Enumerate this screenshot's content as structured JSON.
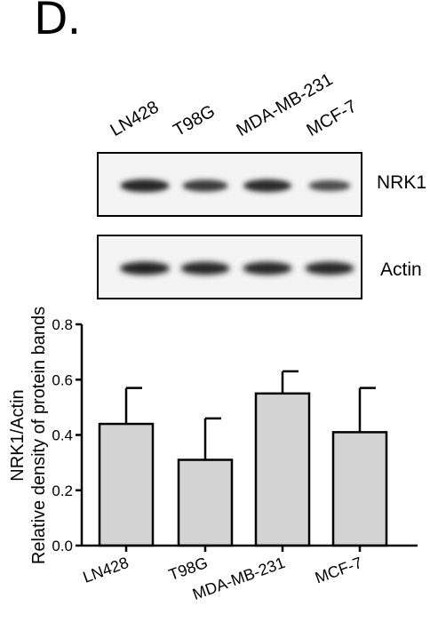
{
  "panel": {
    "letter": "D."
  },
  "blot": {
    "lanes": [
      "LN428",
      "T98G",
      "MDA-MB-231",
      "MCF-7"
    ],
    "rows": [
      {
        "label": "NRK1",
        "band_intensity": [
          0.95,
          0.75,
          0.9,
          0.55
        ]
      },
      {
        "label": "Actin",
        "band_intensity": [
          1.0,
          0.95,
          0.95,
          0.95
        ]
      }
    ]
  },
  "chart_data": {
    "type": "bar",
    "categories": [
      "LN428",
      "T98G",
      "MDA-MB-231",
      "MCF-7"
    ],
    "series": [
      {
        "values": [
          0.44,
          0.31,
          0.55,
          0.41
        ],
        "error": [
          0.13,
          0.15,
          0.08,
          0.16
        ]
      }
    ],
    "ylabel_line1": "NRK1/Actin",
    "ylabel_line2": "Relative density of  protein bands",
    "ylim": [
      0,
      0.8
    ],
    "yticks": [
      "0.0",
      "0.2",
      "0.4",
      "0.6",
      "0.8"
    ],
    "bar_color": "#d3d3d3",
    "grid": false,
    "legend": "none"
  }
}
